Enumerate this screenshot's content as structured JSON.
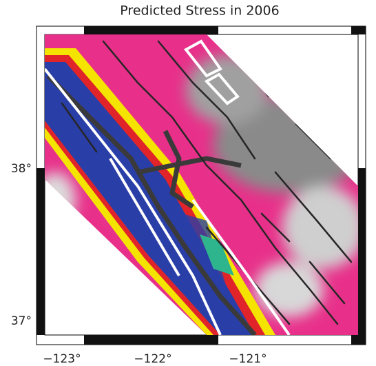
{
  "title": "Predicted Stress in 2006",
  "x_axis": {
    "labels": [
      "−123°",
      "−122°",
      "−121°"
    ]
  },
  "y_axis": {
    "labels": [
      "38°",
      "37°"
    ]
  }
}
